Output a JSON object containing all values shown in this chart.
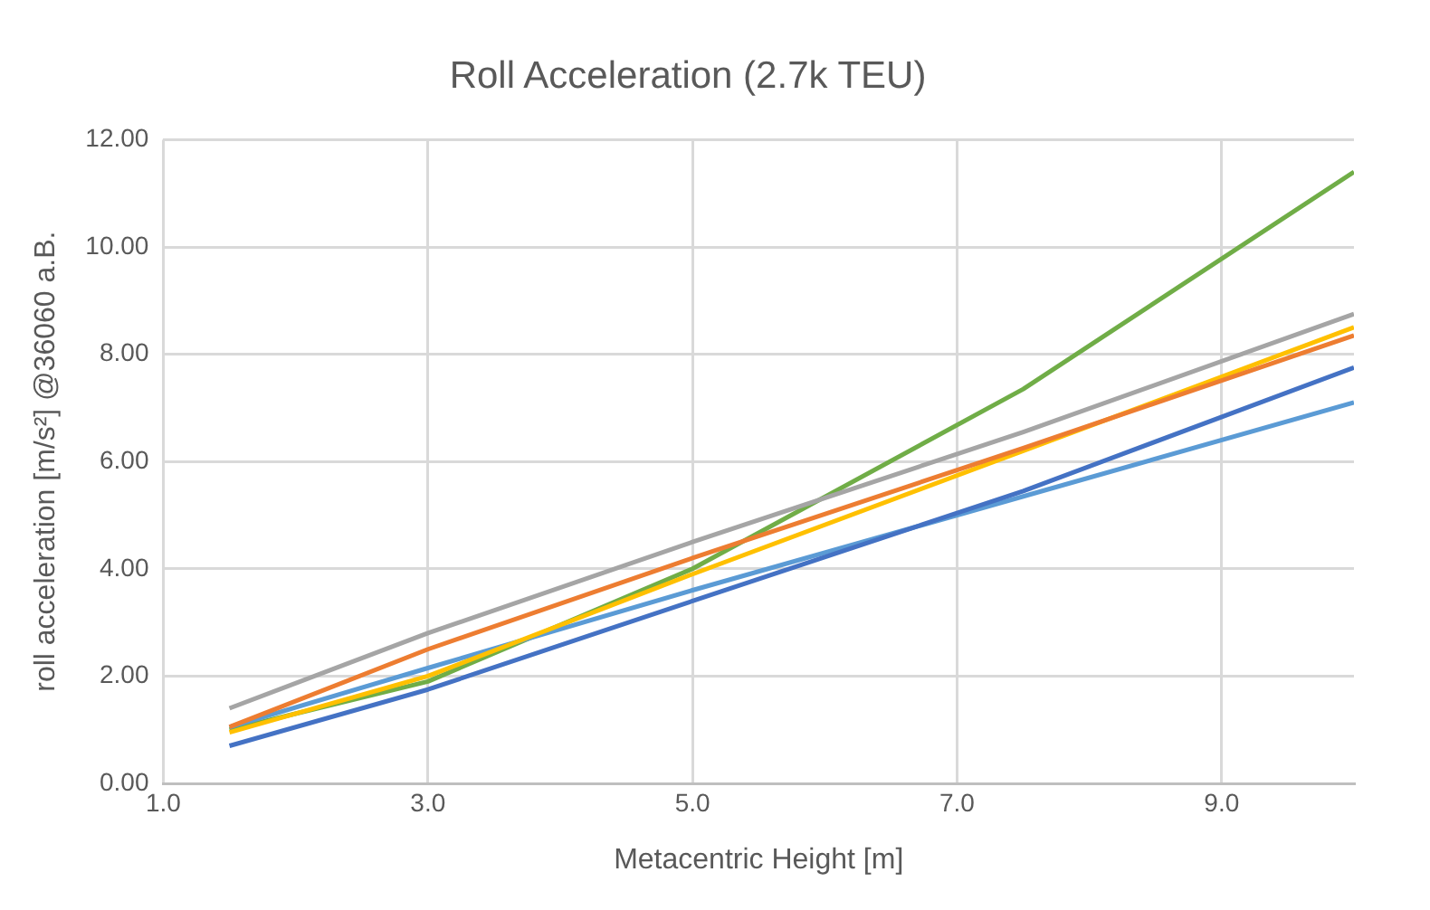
{
  "chart_data": {
    "type": "line",
    "title": "Roll Acceleration (2.7k TEU)",
    "xlabel": "Metacentric Height [m]",
    "ylabel": "roll acceleration [m/s²] @36060 a.B.",
    "x": [
      1.5,
      3,
      5,
      7.5,
      10
    ],
    "series": [
      {
        "color": "#4472c4",
        "values": [
          0.7,
          1.75,
          3.4,
          5.45,
          7.75
        ]
      },
      {
        "color": "#ed7d31",
        "values": [
          1.05,
          2.5,
          4.2,
          6.25,
          8.35
        ]
      },
      {
        "color": "#a5a5a5",
        "values": [
          1.4,
          2.8,
          4.5,
          6.55,
          8.75
        ]
      },
      {
        "color": "#ffc000",
        "values": [
          0.95,
          2.0,
          3.9,
          6.2,
          8.5
        ]
      },
      {
        "color": "#5b9bd5",
        "values": [
          1.05,
          2.15,
          3.6,
          5.35,
          7.1
        ]
      },
      {
        "color": "#70ad47",
        "values": [
          1.0,
          1.9,
          4.0,
          7.35,
          11.4
        ]
      }
    ],
    "xlim": [
      1,
      10
    ],
    "xticks": [
      {
        "value": 1,
        "label": "1.0"
      },
      {
        "value": 3,
        "label": "3.0"
      },
      {
        "value": 5,
        "label": "5.0"
      },
      {
        "value": 7,
        "label": "7.0"
      },
      {
        "value": 9,
        "label": "9.0"
      }
    ],
    "ylim": [
      0,
      12
    ],
    "yticks": [
      {
        "value": 0,
        "label": "0.00"
      },
      {
        "value": 2,
        "label": "2.00"
      },
      {
        "value": 4,
        "label": "4.00"
      },
      {
        "value": 6,
        "label": "6.00"
      },
      {
        "value": 8,
        "label": "8.00"
      },
      {
        "value": 10,
        "label": "10.00"
      },
      {
        "value": 12,
        "label": "12.00"
      }
    ],
    "grid": true,
    "legend": false,
    "marker": "none",
    "line_style": "solid"
  }
}
